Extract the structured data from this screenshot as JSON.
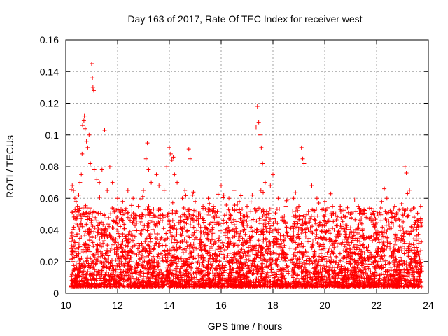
{
  "chart_data": {
    "type": "scatter",
    "title": "Day 163 of 2017, Rate Of TEC Index for receiver west",
    "xlabel": "GPS time / hours",
    "ylabel": "ROTI / TECUs",
    "xlim": [
      10,
      24
    ],
    "ylim": [
      0,
      0.16
    ],
    "x_ticks": [
      10,
      12,
      14,
      16,
      18,
      20,
      22,
      24
    ],
    "x_tick_labels": [
      "10",
      "12",
      "14",
      "16",
      "18",
      "20",
      "22",
      "24"
    ],
    "y_ticks": [
      0,
      0.02,
      0.04,
      0.06,
      0.08,
      0.1,
      0.12,
      0.14,
      0.16
    ],
    "y_tick_labels": [
      "0",
      "0.02",
      "0.04",
      "0.06",
      "0.08",
      "0.1",
      "0.12",
      "0.14",
      "0.16"
    ],
    "grid": true,
    "marker": "+",
    "marker_color": "#ff0000",
    "series": [
      {
        "name": "ROTI",
        "points": [
          [
            10.25,
            0.068
          ],
          [
            10.3,
            0.065
          ],
          [
            10.35,
            0.06
          ],
          [
            10.4,
            0.058
          ],
          [
            10.45,
            0.055
          ],
          [
            10.5,
            0.062
          ],
          [
            10.55,
            0.07
          ],
          [
            10.6,
            0.075
          ],
          [
            10.63,
            0.088
          ],
          [
            10.65,
            0.106
          ],
          [
            10.7,
            0.109
          ],
          [
            10.72,
            0.112
          ],
          [
            10.75,
            0.104
          ],
          [
            10.8,
            0.096
          ],
          [
            10.85,
            0.092
          ],
          [
            10.9,
            0.1
          ],
          [
            10.95,
            0.082
          ],
          [
            11.0,
            0.145
          ],
          [
            11.03,
            0.136
          ],
          [
            11.05,
            0.13
          ],
          [
            11.08,
            0.128
          ],
          [
            11.1,
            0.078
          ],
          [
            11.2,
            0.072
          ],
          [
            11.3,
            0.07
          ],
          [
            11.4,
            0.078
          ],
          [
            11.5,
            0.103
          ],
          [
            11.6,
            0.065
          ],
          [
            11.7,
            0.08
          ],
          [
            11.8,
            0.07
          ],
          [
            12.0,
            0.06
          ],
          [
            12.2,
            0.058
          ],
          [
            12.4,
            0.065
          ],
          [
            12.6,
            0.06
          ],
          [
            12.8,
            0.055
          ],
          [
            13.0,
            0.065
          ],
          [
            13.1,
            0.085
          ],
          [
            13.15,
            0.095
          ],
          [
            13.2,
            0.078
          ],
          [
            13.3,
            0.07
          ],
          [
            13.5,
            0.075
          ],
          [
            13.6,
            0.068
          ],
          [
            13.8,
            0.065
          ],
          [
            13.9,
            0.08
          ],
          [
            14.0,
            0.092
          ],
          [
            14.05,
            0.088
          ],
          [
            14.1,
            0.084
          ],
          [
            14.15,
            0.086
          ],
          [
            14.2,
            0.075
          ],
          [
            14.3,
            0.07
          ],
          [
            14.5,
            0.06
          ],
          [
            14.6,
            0.065
          ],
          [
            14.75,
            0.091
          ],
          [
            14.8,
            0.085
          ],
          [
            14.9,
            0.062
          ],
          [
            15.0,
            0.058
          ],
          [
            15.3,
            0.055
          ],
          [
            15.5,
            0.06
          ],
          [
            15.7,
            0.055
          ],
          [
            16.0,
            0.068
          ],
          [
            16.1,
            0.062
          ],
          [
            16.3,
            0.06
          ],
          [
            16.5,
            0.065
          ],
          [
            16.7,
            0.058
          ],
          [
            17.0,
            0.055
          ],
          [
            17.2,
            0.062
          ],
          [
            17.35,
            0.105
          ],
          [
            17.4,
            0.118
          ],
          [
            17.45,
            0.108
          ],
          [
            17.5,
            0.1
          ],
          [
            17.55,
            0.092
          ],
          [
            17.6,
            0.082
          ],
          [
            17.7,
            0.07
          ],
          [
            17.9,
            0.068
          ],
          [
            18.0,
            0.075
          ],
          [
            18.2,
            0.06
          ],
          [
            18.5,
            0.055
          ],
          [
            18.8,
            0.06
          ],
          [
            19.0,
            0.055
          ],
          [
            19.1,
            0.092
          ],
          [
            19.15,
            0.085
          ],
          [
            19.2,
            0.082
          ],
          [
            19.5,
            0.068
          ],
          [
            19.7,
            0.06
          ],
          [
            20.0,
            0.058
          ],
          [
            20.3,
            0.055
          ],
          [
            20.6,
            0.055
          ],
          [
            21.0,
            0.05
          ],
          [
            21.3,
            0.055
          ],
          [
            21.6,
            0.048
          ],
          [
            21.9,
            0.052
          ],
          [
            22.2,
            0.058
          ],
          [
            22.3,
            0.066
          ],
          [
            22.4,
            0.06
          ],
          [
            22.7,
            0.055
          ],
          [
            23.0,
            0.05
          ],
          [
            23.1,
            0.08
          ],
          [
            23.15,
            0.076
          ],
          [
            23.2,
            0.063
          ],
          [
            23.5,
            0.045
          ],
          [
            23.7,
            0.055
          ]
        ]
      }
    ]
  }
}
